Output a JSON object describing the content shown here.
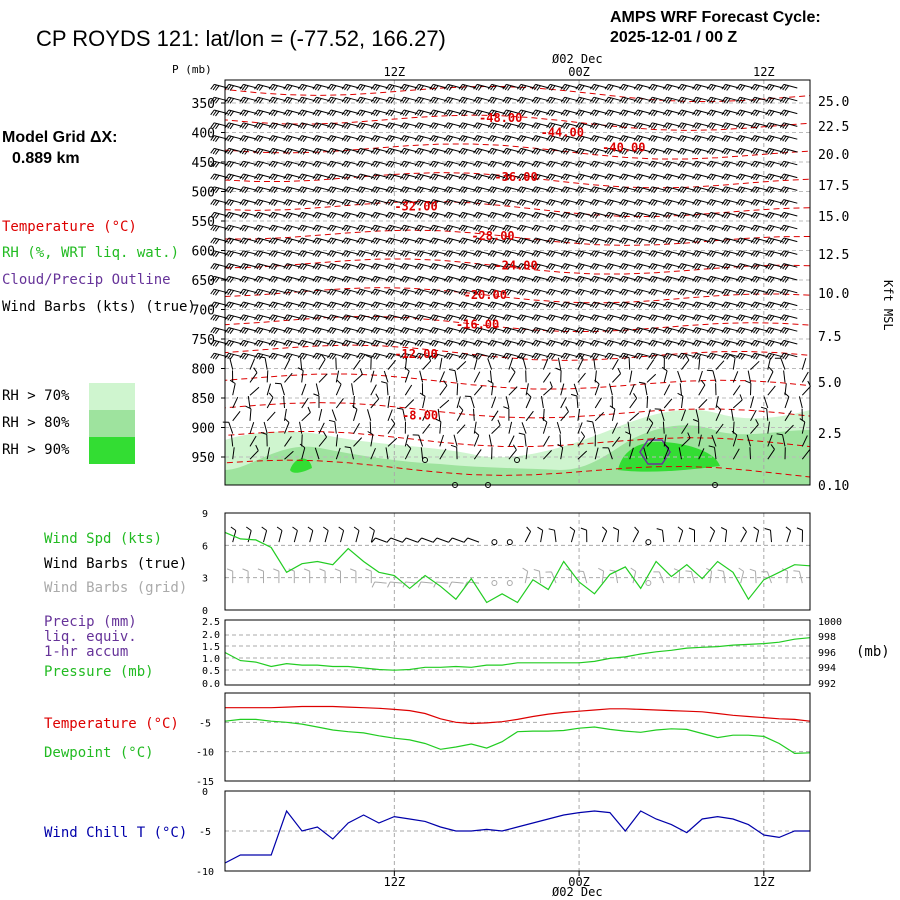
{
  "header": {
    "title": "CP ROYDS 121:  lat/lon = (-77.52, 166.27)",
    "cycle_line1": "AMPS WRF Forecast Cycle:",
    "cycle_line2": "2025-12-01 / 00  Z",
    "grid_line1": "Model Grid ΔX:",
    "grid_line2": "0.889 km"
  },
  "colors": {
    "temperature": "#dd0000",
    "green": "#22cc22",
    "cloud": "#663399",
    "windchill": "#0000aa",
    "rh70": "#cff5cf",
    "rh80": "#9ee39e",
    "rh90": "#33dd33",
    "grid": "#aaaaaa",
    "grid_barbs": "#aaaaaa"
  },
  "time_axis": {
    "top_date": "Ø02 Dec",
    "bottom_date": "Ø02 Dec",
    "ticks": [
      {
        "label": "12Z",
        "hour": 12
      },
      {
        "label": "00Z",
        "hour": 24
      },
      {
        "label": "12Z",
        "hour": 36
      }
    ],
    "range_hours": [
      1,
      39
    ]
  },
  "legend": {
    "temperature": "Temperature (°C)",
    "rh": "RH (%, WRT liq. wat.)",
    "cloud": "Cloud/Precip Outline",
    "barbs": "Wind Barbs (kts) (true)",
    "rh70": "RH > 70%",
    "rh80": "RH > 80%",
    "rh90": "RH > 90%"
  },
  "chart_data": [
    {
      "type": "heatmap",
      "name": "time-height cross section",
      "ylabel": "P (mb)",
      "ylabel_right": "Kft MSL",
      "pressure_ticks": [
        "350",
        "400",
        "450",
        "500",
        "550",
        "600",
        "650",
        "700",
        "750",
        "800",
        "850",
        "900",
        "950"
      ],
      "height_ticks": [
        "25.0",
        "22.5",
        "20.0",
        "17.5",
        "15.0",
        "12.5",
        "10.0",
        "7.5",
        "5.0",
        "2.5",
        "0.10"
      ],
      "temperature_labels": [
        {
          "label": "-48.00",
          "hour": 17.5,
          "p": 375
        },
        {
          "label": "-44.00",
          "hour": 21.5,
          "p": 400
        },
        {
          "label": "-40.00",
          "hour": 25.5,
          "p": 425
        },
        {
          "label": "-36.00",
          "hour": 18.5,
          "p": 475
        },
        {
          "label": "-32.00",
          "hour": 12.0,
          "p": 525
        },
        {
          "label": "-28.00",
          "hour": 17.0,
          "p": 575
        },
        {
          "label": "-24.00",
          "hour": 18.5,
          "p": 625
        },
        {
          "label": "-20.00",
          "hour": 16.5,
          "p": 675
        },
        {
          "label": "-16.00",
          "hour": 16.0,
          "p": 725
        },
        {
          "label": "-12.00",
          "hour": 12.0,
          "p": 775
        },
        {
          "label": "-8.00",
          "hour": 12.5,
          "p": 880
        }
      ]
    },
    {
      "type": "line",
      "name": "wind speed",
      "legend": [
        "Wind Spd (kts)",
        "Wind Barbs (true)",
        "Wind Barbs (grid)"
      ],
      "ylim": [
        0,
        9
      ],
      "yticks": [
        "9",
        "6",
        "3",
        "0"
      ],
      "x": [
        1,
        2,
        3,
        4,
        5,
        6,
        7,
        8,
        9,
        10,
        11,
        12,
        13,
        14,
        15,
        16,
        17,
        18,
        19,
        20,
        21,
        22,
        23,
        24,
        25,
        26,
        27,
        28,
        29,
        30,
        31,
        32,
        33,
        34,
        35,
        36,
        37,
        38,
        39
      ],
      "values": [
        7.2,
        6.6,
        6.5,
        5.8,
        3.5,
        4.3,
        4.5,
        4.2,
        5.7,
        4.5,
        3.5,
        3.2,
        2.0,
        3.2,
        2.2,
        1.0,
        2.9,
        0.7,
        1.5,
        0.7,
        2.8,
        1.9,
        4.5,
        2.6,
        1.5,
        3.3,
        4.0,
        2.0,
        4.5,
        3.1,
        4.2,
        2.9,
        4.5,
        3.5,
        1.0,
        2.8,
        3.5,
        4.2,
        4.1
      ]
    },
    {
      "type": "line",
      "name": "pressure",
      "legend": [
        "Precip (mm)",
        "liq. equiv.",
        "1-hr accum",
        "Pressure (mb)"
      ],
      "y_left_ticks": [
        "2.5",
        "2.0",
        "1.5",
        "1.0",
        "0.5",
        "0.0"
      ],
      "y_right_ticks": [
        "1000",
        "998",
        "996",
        "994",
        "992"
      ],
      "y_right_unit": "(mb)",
      "ylim": [
        991.5,
        1000.3
      ],
      "x": [
        1,
        2,
        3,
        4,
        5,
        6,
        7,
        8,
        9,
        10,
        11,
        12,
        13,
        14,
        15,
        16,
        17,
        18,
        19,
        20,
        21,
        22,
        23,
        24,
        25,
        26,
        27,
        28,
        29,
        30,
        31,
        32,
        33,
        34,
        35,
        36,
        37,
        38,
        39
      ],
      "values": [
        995.9,
        994.8,
        994.6,
        994.0,
        994.4,
        994.2,
        994.2,
        994.0,
        994.0,
        993.8,
        993.6,
        993.5,
        993.6,
        993.9,
        993.9,
        994.0,
        993.9,
        994.2,
        994.2,
        994.5,
        994.5,
        994.5,
        994.5,
        994.5,
        994.7,
        995.1,
        995.3,
        995.7,
        996.0,
        996.2,
        996.5,
        996.6,
        996.7,
        996.9,
        997.0,
        997.1,
        997.3,
        997.7,
        997.9
      ]
    },
    {
      "type": "line",
      "name": "temperature and dewpoint",
      "legend": [
        "Temperature (°C)",
        "Dewpoint (°C)"
      ],
      "ylim": [
        -15,
        0
      ],
      "yticks": [
        "-5",
        "-10",
        "-15"
      ],
      "x": [
        1,
        2,
        3,
        4,
        5,
        6,
        7,
        8,
        9,
        10,
        11,
        12,
        13,
        14,
        15,
        16,
        17,
        18,
        19,
        20,
        21,
        22,
        23,
        24,
        25,
        26,
        27,
        28,
        29,
        30,
        31,
        32,
        33,
        34,
        35,
        36,
        37,
        38,
        39
      ],
      "series": [
        {
          "name": "Temperature",
          "values": [
            -2.5,
            -2.5,
            -2.5,
            -2.5,
            -2.4,
            -2.3,
            -2.3,
            -2.3,
            -2.4,
            -2.5,
            -2.6,
            -2.8,
            -3.0,
            -3.5,
            -4.4,
            -5.0,
            -5.2,
            -5.1,
            -4.9,
            -4.5,
            -4.0,
            -3.6,
            -3.3,
            -3.1,
            -2.9,
            -2.7,
            -2.7,
            -2.8,
            -2.9,
            -3.0,
            -3.1,
            -3.2,
            -3.5,
            -3.8,
            -4.0,
            -4.2,
            -4.4,
            -4.5,
            -4.8
          ]
        },
        {
          "name": "Dewpoint",
          "values": [
            -4.8,
            -4.5,
            -4.5,
            -4.8,
            -5.0,
            -5.3,
            -5.8,
            -6.3,
            -6.6,
            -6.8,
            -7.3,
            -7.7,
            -8.0,
            -8.6,
            -9.6,
            -9.2,
            -8.7,
            -9.4,
            -8.3,
            -6.6,
            -6.5,
            -6.5,
            -6.4,
            -6.0,
            -5.8,
            -6.2,
            -6.5,
            -6.7,
            -6.3,
            -6.1,
            -6.2,
            -6.9,
            -7.6,
            -7.2,
            -7.2,
            -7.4,
            -8.6,
            -10.3,
            -10.2
          ]
        }
      ]
    },
    {
      "type": "line",
      "name": "wind chill",
      "legend": [
        "Wind Chill T (°C)"
      ],
      "ylim": [
        -10,
        0
      ],
      "yticks": [
        "0",
        "-5",
        "-10"
      ],
      "x": [
        1,
        2,
        3,
        4,
        5,
        6,
        7,
        8,
        9,
        10,
        11,
        12,
        13,
        14,
        15,
        16,
        17,
        18,
        19,
        20,
        21,
        22,
        23,
        24,
        25,
        26,
        27,
        28,
        29,
        30,
        31,
        32,
        33,
        34,
        35,
        36,
        37,
        38,
        39
      ],
      "values": [
        -9.0,
        -8.0,
        -8.0,
        -8.0,
        -2.5,
        -5.0,
        -4.5,
        -6.0,
        -4.0,
        -3.0,
        -4.0,
        -3.2,
        -3.5,
        -3.8,
        -4.5,
        -5.0,
        -5.0,
        -4.8,
        -5.0,
        -4.5,
        -4.0,
        -3.5,
        -3.0,
        -2.7,
        -2.5,
        -2.7,
        -5.0,
        -2.5,
        -3.5,
        -4.2,
        -5.2,
        -3.5,
        -3.2,
        -3.5,
        -4.2,
        -5.5,
        -5.8,
        -5.0,
        -5.0
      ]
    }
  ]
}
